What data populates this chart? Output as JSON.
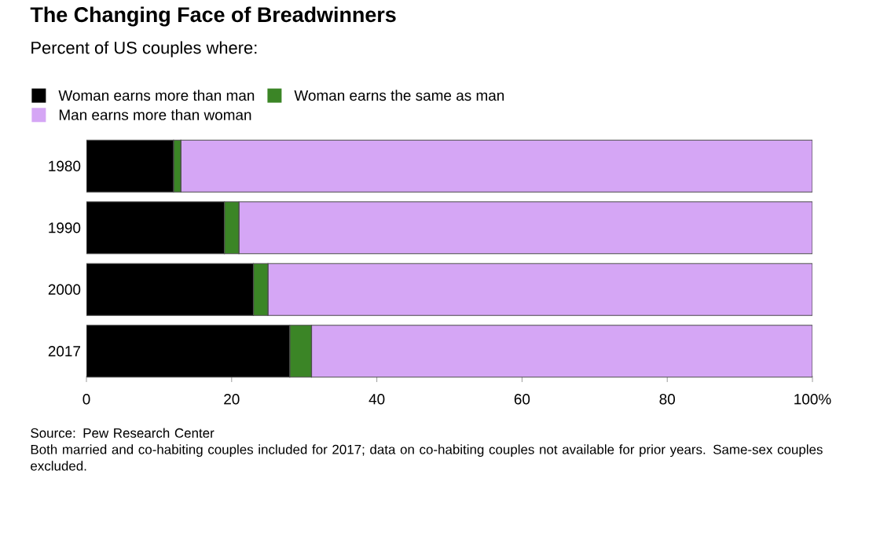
{
  "chart_data": {
    "type": "bar",
    "orientation": "horizontal",
    "stacked": true,
    "title": "The Changing Face of Breadwinners",
    "subtitle": "Percent of US couples where:",
    "categories": [
      "1980",
      "1990",
      "2000",
      "2017"
    ],
    "series": [
      {
        "name": "Woman earns more than man",
        "color": "#000000",
        "values": [
          12,
          19,
          23,
          28
        ]
      },
      {
        "name": "Woman earns the same as man",
        "color": "#3b8526",
        "values": [
          1,
          2,
          2,
          3
        ]
      },
      {
        "name": "Man earns more than woman",
        "color": "#d5a6f5",
        "values": [
          87,
          79,
          75,
          69
        ]
      }
    ],
    "xlim": [
      0,
      100
    ],
    "xticks": [
      0,
      20,
      40,
      60,
      80,
      {
        "value": 100,
        "label": "100%"
      }
    ],
    "grid": false,
    "legend": "top left",
    "annotations": [
      "Source: Pew Research Center",
      "Both married and co-habiting couples included for 2017; data on co-habiting couples not available for prior years. Same-sex couples excluded."
    ]
  }
}
